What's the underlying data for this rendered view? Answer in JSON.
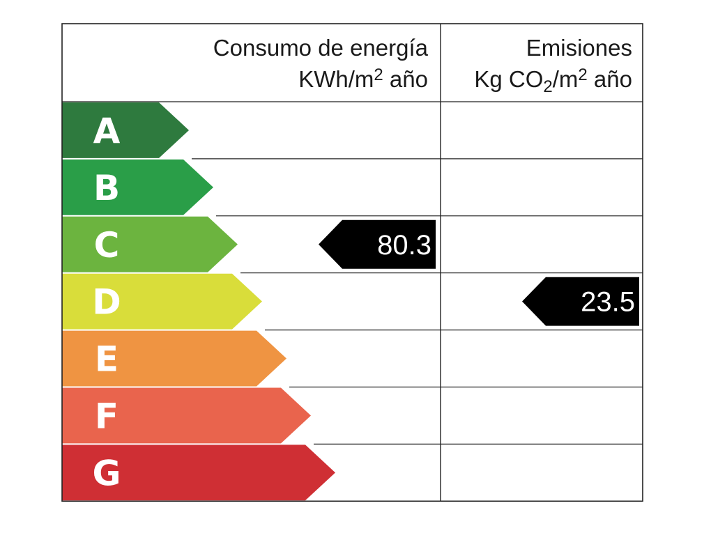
{
  "header": {
    "energy_title": "Consumo de energía",
    "energy_unit_pre": "KWh/m",
    "energy_unit_sup": "2",
    "energy_unit_post": " año",
    "emissions_title": "Emisiones",
    "emissions_unit_pre": "Kg CO",
    "emissions_unit_sub": "2",
    "emissions_unit_mid": "/m",
    "emissions_unit_sup": "2",
    "emissions_unit_post": " año"
  },
  "classes": [
    {
      "letter": "A",
      "color": "#2e7a3e"
    },
    {
      "letter": "B",
      "color": "#2a9e48"
    },
    {
      "letter": "C",
      "color": "#6cb43f"
    },
    {
      "letter": "D",
      "color": "#d9dd3a"
    },
    {
      "letter": "E",
      "color": "#ef9442"
    },
    {
      "letter": "F",
      "color": "#e9644d"
    },
    {
      "letter": "G",
      "color": "#cf2f34"
    }
  ],
  "energy_rating": {
    "class": "C",
    "value": "80.3"
  },
  "emissions_rating": {
    "class": "D",
    "value": "23.5"
  }
}
